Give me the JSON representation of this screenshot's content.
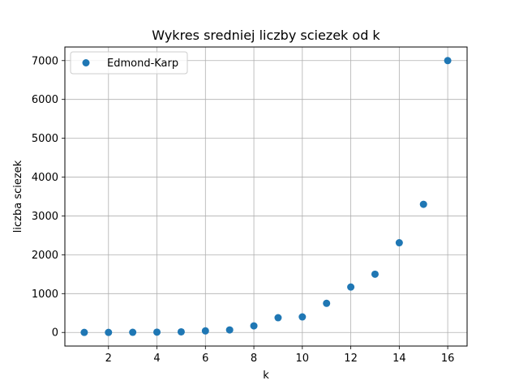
{
  "chart_data": {
    "type": "scatter",
    "title": "Wykres sredniej liczby sciezek od k",
    "xlabel": "k",
    "ylabel": "liczba sciezek",
    "xlim": [
      0.2,
      16.8
    ],
    "ylim": [
      -350,
      7350
    ],
    "xticks": [
      2,
      4,
      6,
      8,
      10,
      12,
      14,
      16
    ],
    "yticks": [
      0,
      1000,
      2000,
      3000,
      4000,
      5000,
      6000,
      7000
    ],
    "grid": true,
    "legend_position": "top-left",
    "series": [
      {
        "name": "Edmond-Karp",
        "color": "#1f77b4",
        "x": [
          1,
          2,
          3,
          4,
          5,
          6,
          7,
          8,
          9,
          10,
          11,
          12,
          13,
          14,
          15,
          16
        ],
        "y": [
          1,
          2,
          4,
          8,
          16,
          40,
          65,
          170,
          380,
          400,
          750,
          1170,
          1500,
          2310,
          3300,
          7000
        ]
      }
    ]
  }
}
